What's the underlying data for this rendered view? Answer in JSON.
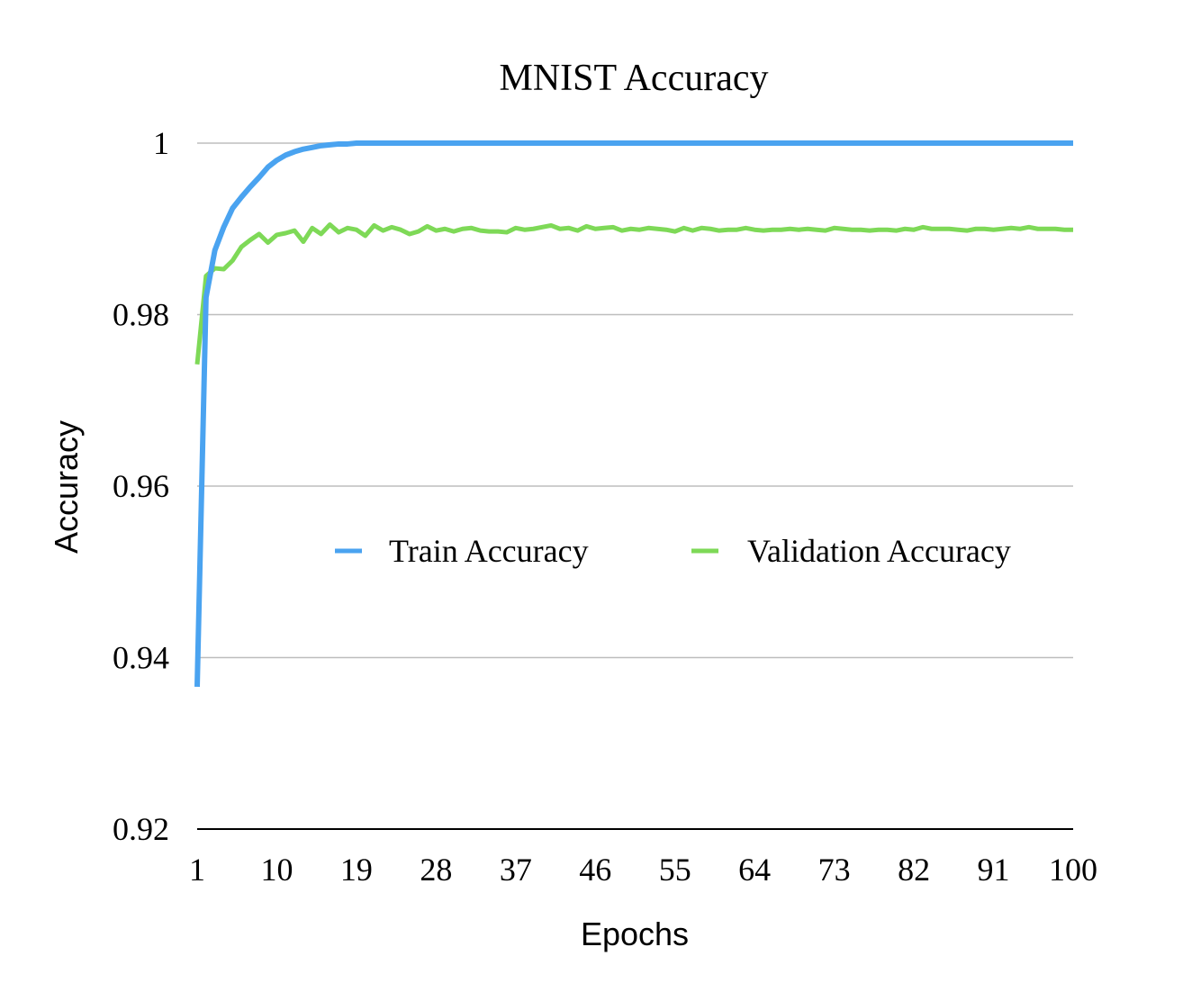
{
  "chart_data": {
    "type": "line",
    "title": "MNIST Accuracy",
    "xlabel": "Epochs",
    "ylabel": "Accuracy",
    "xlim": [
      1,
      100
    ],
    "ylim": [
      0.92,
      1.0
    ],
    "x_ticks": [
      "1",
      "10",
      "19",
      "28",
      "37",
      "46",
      "55",
      "64",
      "73",
      "82",
      "91",
      "100"
    ],
    "y_ticks": [
      "0.92",
      "0.94",
      "0.96",
      "0.98",
      "1"
    ],
    "grid": true,
    "legend_position": "center-right",
    "x": [
      1,
      2,
      3,
      4,
      5,
      6,
      7,
      8,
      9,
      10,
      11,
      12,
      13,
      14,
      15,
      16,
      17,
      18,
      19,
      20,
      21,
      22,
      23,
      24,
      25,
      26,
      27,
      28,
      29,
      30,
      31,
      32,
      33,
      34,
      35,
      36,
      37,
      38,
      39,
      40,
      41,
      42,
      43,
      44,
      45,
      46,
      47,
      48,
      49,
      50,
      51,
      52,
      53,
      54,
      55,
      56,
      57,
      58,
      59,
      60,
      61,
      62,
      63,
      64,
      65,
      66,
      67,
      68,
      69,
      70,
      71,
      72,
      73,
      74,
      75,
      76,
      77,
      78,
      79,
      80,
      81,
      82,
      83,
      84,
      85,
      86,
      87,
      88,
      89,
      90,
      91,
      92,
      93,
      94,
      95,
      96,
      97,
      98,
      99,
      100
    ],
    "series": [
      {
        "name": "Train Accuracy",
        "color": "#4aa3f0",
        "values": [
          0.9366,
          0.982,
          0.9875,
          0.9902,
          0.9924,
          0.9937,
          0.9949,
          0.996,
          0.9972,
          0.998,
          0.9986,
          0.999,
          0.9993,
          0.9995,
          0.9997,
          0.9998,
          0.9999,
          0.9999,
          1.0,
          1.0,
          1.0,
          1.0,
          1.0,
          1.0,
          1.0,
          1.0,
          1.0,
          1.0,
          1.0,
          1.0,
          1.0,
          1.0,
          1.0,
          1.0,
          1.0,
          1.0,
          1.0,
          1.0,
          1.0,
          1.0,
          1.0,
          1.0,
          1.0,
          1.0,
          1.0,
          1.0,
          1.0,
          1.0,
          1.0,
          1.0,
          1.0,
          1.0,
          1.0,
          1.0,
          1.0,
          1.0,
          1.0,
          1.0,
          1.0,
          1.0,
          1.0,
          1.0,
          1.0,
          1.0,
          1.0,
          1.0,
          1.0,
          1.0,
          1.0,
          1.0,
          1.0,
          1.0,
          1.0,
          1.0,
          1.0,
          1.0,
          1.0,
          1.0,
          1.0,
          1.0,
          1.0,
          1.0,
          1.0,
          1.0,
          1.0,
          1.0,
          1.0,
          1.0,
          1.0,
          1.0,
          1.0,
          1.0,
          1.0,
          1.0,
          1.0,
          1.0,
          1.0,
          1.0,
          1.0,
          1.0
        ]
      },
      {
        "name": "Validation Accuracy",
        "color": "#7ed957",
        "values": [
          0.9742,
          0.9845,
          0.9854,
          0.9853,
          0.9863,
          0.9879,
          0.9887,
          0.9894,
          0.9884,
          0.9893,
          0.9895,
          0.9898,
          0.9885,
          0.9901,
          0.9894,
          0.9905,
          0.9896,
          0.9901,
          0.9899,
          0.9892,
          0.9904,
          0.9898,
          0.9902,
          0.9899,
          0.9894,
          0.9897,
          0.9903,
          0.9898,
          0.99,
          0.9897,
          0.99,
          0.9901,
          0.9898,
          0.9897,
          0.9897,
          0.9896,
          0.9901,
          0.9899,
          0.99,
          0.9902,
          0.9904,
          0.99,
          0.9901,
          0.9898,
          0.9903,
          0.99,
          0.9901,
          0.9902,
          0.9898,
          0.99,
          0.9899,
          0.9901,
          0.99,
          0.9899,
          0.9897,
          0.9901,
          0.9898,
          0.9901,
          0.99,
          0.9898,
          0.9899,
          0.9899,
          0.9901,
          0.9899,
          0.9898,
          0.9899,
          0.9899,
          0.99,
          0.9899,
          0.99,
          0.9899,
          0.9898,
          0.9901,
          0.99,
          0.9899,
          0.9899,
          0.9898,
          0.9899,
          0.9899,
          0.9898,
          0.99,
          0.9899,
          0.9902,
          0.99,
          0.99,
          0.99,
          0.9899,
          0.9898,
          0.99,
          0.99,
          0.9899,
          0.99,
          0.9901,
          0.99,
          0.9902,
          0.99,
          0.99,
          0.99,
          0.9899,
          0.9899
        ]
      }
    ]
  }
}
